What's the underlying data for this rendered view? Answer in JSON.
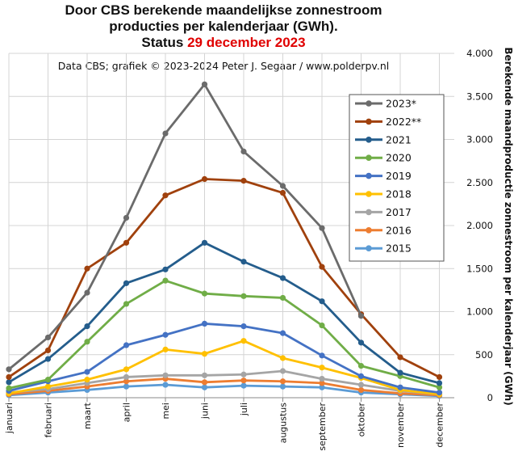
{
  "title": {
    "line1": "Door CBS berekende maandelijkse  zonnestroom",
    "line2": "producties per kalenderjaar (GWh).",
    "line3_prefix": "Status ",
    "line3_date": "29 december 2023"
  },
  "subtitle": "Data CBS;  grafiek © 2023-2024  Peter J. Segaar / www.polderpv.nl",
  "colors": {
    "status_date": "#e00000",
    "grid": "#d4d4d4"
  },
  "chart_data": {
    "type": "line",
    "categories": [
      "januari",
      "februari",
      "maart",
      "april",
      "mei",
      "juni",
      "juli",
      "augustus",
      "september",
      "oktober",
      "november",
      "december"
    ],
    "ylabel": "Berekende maandproductie  zonnestroom  per kalenderjaar (GWh)",
    "ylim": [
      0,
      4000
    ],
    "yticks": [
      0,
      500,
      1000,
      1500,
      2000,
      2500,
      3000,
      3500,
      4000
    ],
    "ytick_labels": [
      "0",
      "500",
      "1.000",
      "1.500",
      "2.000",
      "2.500",
      "3.000",
      "3.500",
      "4.000"
    ],
    "y_axis_side": "right",
    "grid": true,
    "legend_position": "top-right",
    "series": [
      {
        "name": "2023*",
        "color": "#6b6b6b",
        "values": [
          330,
          700,
          1220,
          2090,
          3070,
          3640,
          2860,
          2460,
          1970,
          950,
          null,
          null
        ]
      },
      {
        "name": "2022**",
        "color": "#a0410d",
        "values": [
          240,
          550,
          1500,
          1800,
          2350,
          2540,
          2520,
          2380,
          1520,
          970,
          470,
          240
        ]
      },
      {
        "name": "2021",
        "color": "#245d8c",
        "values": [
          180,
          450,
          830,
          1330,
          1490,
          1800,
          1580,
          1390,
          1120,
          640,
          290,
          170
        ]
      },
      {
        "name": "2020",
        "color": "#70ad47",
        "values": [
          110,
          210,
          650,
          1090,
          1360,
          1210,
          1180,
          1160,
          840,
          370,
          250,
          120
        ]
      },
      {
        "name": "2019",
        "color": "#4472c4",
        "values": [
          80,
          190,
          300,
          610,
          730,
          860,
          830,
          750,
          490,
          250,
          120,
          60
        ]
      },
      {
        "name": "2018",
        "color": "#ffc000",
        "values": [
          50,
          130,
          210,
          330,
          560,
          510,
          660,
          460,
          350,
          230,
          90,
          40
        ]
      },
      {
        "name": "2017",
        "color": "#a5a5a5",
        "values": [
          60,
          100,
          170,
          240,
          260,
          260,
          270,
          310,
          220,
          150,
          80,
          40
        ]
      },
      {
        "name": "2016",
        "color": "#ed7d31",
        "values": [
          40,
          80,
          130,
          190,
          220,
          180,
          200,
          190,
          170,
          90,
          50,
          30
        ]
      },
      {
        "name": "2015",
        "color": "#5b9bd5",
        "values": [
          30,
          60,
          90,
          130,
          150,
          120,
          140,
          130,
          120,
          60,
          40,
          20
        ]
      }
    ]
  }
}
